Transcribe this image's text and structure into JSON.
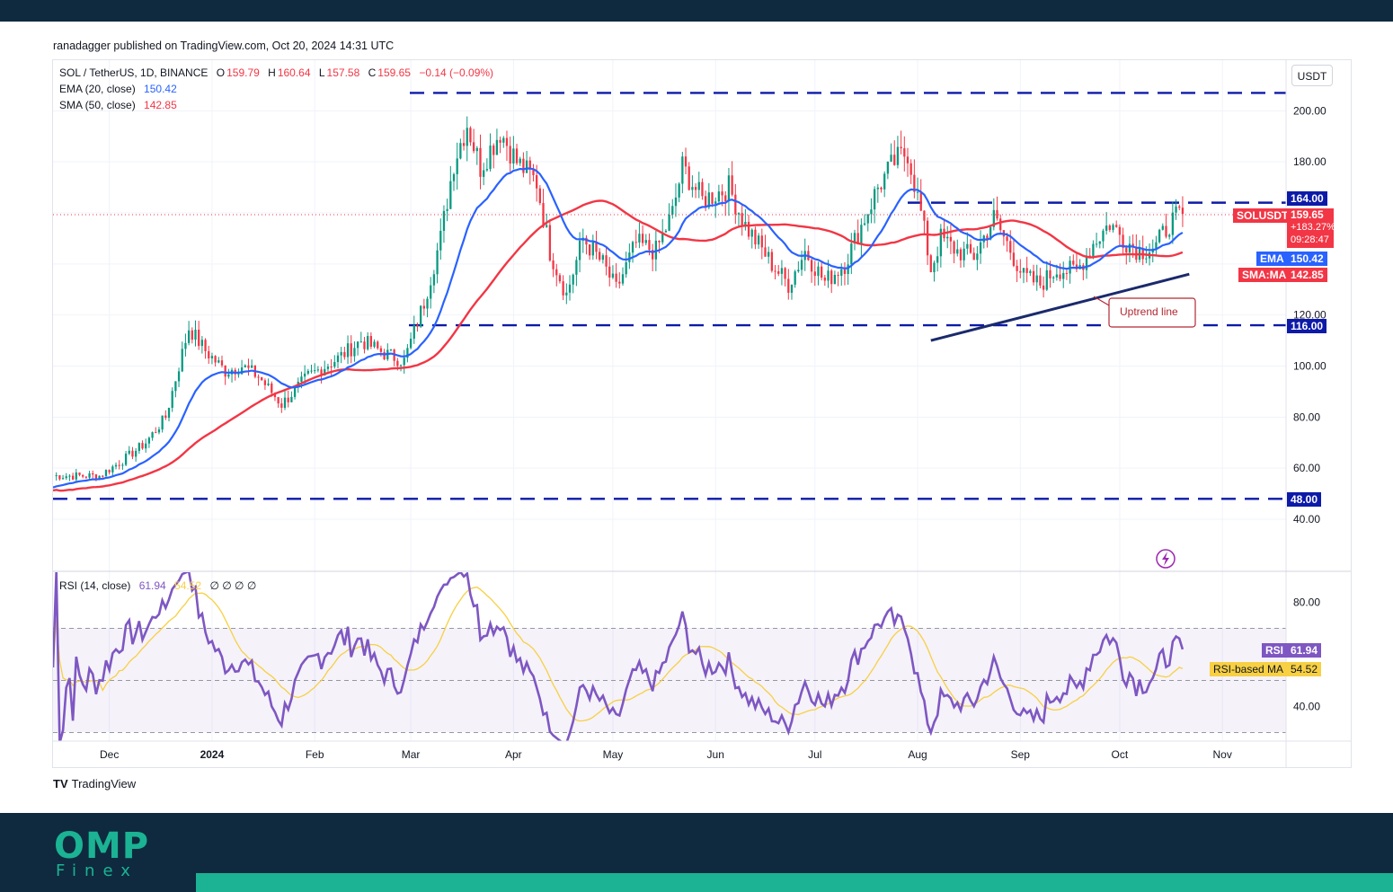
{
  "publisher": {
    "text": "ranadagger published on TradingView.com, Oct 20, 2024 14:31 UTC"
  },
  "legend": {
    "symbol": "SOL / TetherUS, 1D, BINANCE",
    "open_label": "O",
    "open": "159.79",
    "high_label": "H",
    "high": "160.64",
    "low_label": "L",
    "low": "157.58",
    "close_label": "C",
    "close": "159.65",
    "change": "−0.14 (−0.09%)",
    "ema_label": "EMA (20, close)",
    "ema_value": "150.42",
    "sma_label": "SMA (50, close)",
    "sma_value": "142.85",
    "rsi_label": "RSI (14, close)",
    "rsi_value": "61.94",
    "rsi_ma_value": "54.52",
    "rsi_extra": "∅ ∅ ∅ ∅"
  },
  "currency_button": "USDT",
  "price_labels": {
    "symbol_tag": "SOLUSDT",
    "price": "159.65",
    "change_pct": "+183.27%",
    "countdown": "09:28:47",
    "ema_tag": "EMA",
    "ema": "150.42",
    "sma_tag": "SMA:MA",
    "sma": "142.85",
    "resistance": "164.00",
    "support_mid": "116.00",
    "support_low": "48.00",
    "rsi_tag": "RSI",
    "rsi": "61.94",
    "rsi_ma_tag": "RSI-based MA",
    "rsi_ma": "54.52"
  },
  "annotation": "Uptrend line",
  "footer": {
    "brand": "TradingView"
  },
  "logo": {
    "main": "OMP",
    "sub": "Finex"
  },
  "colors": {
    "up": "#089981",
    "down": "#f23645",
    "ema": "#2962ff",
    "sma": "#f23645",
    "rsi": "#7e57c2",
    "rsi_ma": "#f7d043",
    "level": "#0d1aa8",
    "trend": "#1a2a6c",
    "accent": "#1bb394",
    "dark": "#0f2a3e"
  },
  "chart_data": {
    "type": "candlestick",
    "title": "SOL / TetherUS, 1D, BINANCE",
    "x_ticks": [
      "Dec",
      "2024",
      "Feb",
      "Mar",
      "Apr",
      "May",
      "Jun",
      "Jul",
      "Aug",
      "Sep",
      "Oct",
      "Nov"
    ],
    "y_ticks": [
      40,
      60,
      80,
      100,
      120,
      140,
      160,
      180,
      200
    ],
    "y_tick_labels": [
      "40.00",
      "60.00",
      "80.00",
      "100.00",
      "120.00",
      "",
      "",
      "180.00",
      "200.00"
    ],
    "ylim": [
      30,
      212
    ],
    "horizontal_levels": [
      {
        "value": 207,
        "style": "dashed"
      },
      {
        "value": 164,
        "style": "dashed",
        "label": "164.00"
      },
      {
        "value": 116,
        "style": "dashed",
        "label": "116.00"
      },
      {
        "value": 48,
        "style": "dashed",
        "label": "48.00"
      }
    ],
    "current_price": 159.65,
    "trendline": {
      "name": "Uptrend line",
      "from": [
        "2024-08-05",
        110
      ],
      "to": [
        "2024-10-22",
        136
      ]
    },
    "price_path": [
      [
        "2023-11-20",
        57
      ],
      [
        "2023-11-28",
        57
      ],
      [
        "2023-12-05",
        63
      ],
      [
        "2023-12-12",
        70
      ],
      [
        "2023-12-18",
        80
      ],
      [
        "2023-12-22",
        100
      ],
      [
        "2023-12-25",
        115
      ],
      [
        "2023-12-30",
        106
      ],
      [
        "2024-01-05",
        98
      ],
      [
        "2024-01-10",
        100
      ],
      [
        "2024-01-15",
        96
      ],
      [
        "2024-01-22",
        85
      ],
      [
        "2024-01-30",
        96
      ],
      [
        "2024-02-08",
        103
      ],
      [
        "2024-02-15",
        110
      ],
      [
        "2024-02-22",
        105
      ],
      [
        "2024-02-28",
        102
      ],
      [
        "2024-03-05",
        125
      ],
      [
        "2024-03-10",
        150
      ],
      [
        "2024-03-14",
        180
      ],
      [
        "2024-03-18",
        195
      ],
      [
        "2024-03-22",
        178
      ],
      [
        "2024-03-28",
        192
      ],
      [
        "2024-04-02",
        180
      ],
      [
        "2024-04-08",
        172
      ],
      [
        "2024-04-12",
        145
      ],
      [
        "2024-04-17",
        128
      ],
      [
        "2024-04-22",
        150
      ],
      [
        "2024-04-28",
        140
      ],
      [
        "2024-05-02",
        130
      ],
      [
        "2024-05-08",
        148
      ],
      [
        "2024-05-14",
        145
      ],
      [
        "2024-05-19",
        160
      ],
      [
        "2024-05-22",
        178
      ],
      [
        "2024-05-28",
        165
      ],
      [
        "2024-06-05",
        170
      ],
      [
        "2024-06-10",
        155
      ],
      [
        "2024-06-18",
        140
      ],
      [
        "2024-06-23",
        132
      ],
      [
        "2024-06-28",
        145
      ],
      [
        "2024-07-04",
        133
      ],
      [
        "2024-07-10",
        140
      ],
      [
        "2024-07-15",
        155
      ],
      [
        "2024-07-20",
        170
      ],
      [
        "2024-07-25",
        180
      ],
      [
        "2024-07-29",
        184
      ],
      [
        "2024-08-02",
        160
      ],
      [
        "2024-08-05",
        138
      ],
      [
        "2024-08-08",
        150
      ],
      [
        "2024-08-13",
        145
      ],
      [
        "2024-08-18",
        143
      ],
      [
        "2024-08-24",
        158
      ],
      [
        "2024-08-28",
        148
      ],
      [
        "2024-09-02",
        135
      ],
      [
        "2024-09-07",
        132
      ],
      [
        "2024-09-12",
        138
      ],
      [
        "2024-09-18",
        137
      ],
      [
        "2024-09-23",
        148
      ],
      [
        "2024-09-28",
        156
      ],
      [
        "2024-10-02",
        150
      ],
      [
        "2024-10-07",
        145
      ],
      [
        "2024-10-12",
        147
      ],
      [
        "2024-10-16",
        156
      ],
      [
        "2024-10-20",
        159.65
      ]
    ],
    "series": [
      {
        "name": "EMA (20, close)",
        "last": 150.42
      },
      {
        "name": "SMA (50, close)",
        "last": 142.85
      }
    ],
    "rsi": {
      "name": "RSI (14, close)",
      "last": 61.94,
      "ma_name": "RSI-based MA",
      "ma_last": 54.52,
      "y_ticks": [
        40,
        80
      ],
      "band": [
        30,
        70
      ]
    }
  }
}
